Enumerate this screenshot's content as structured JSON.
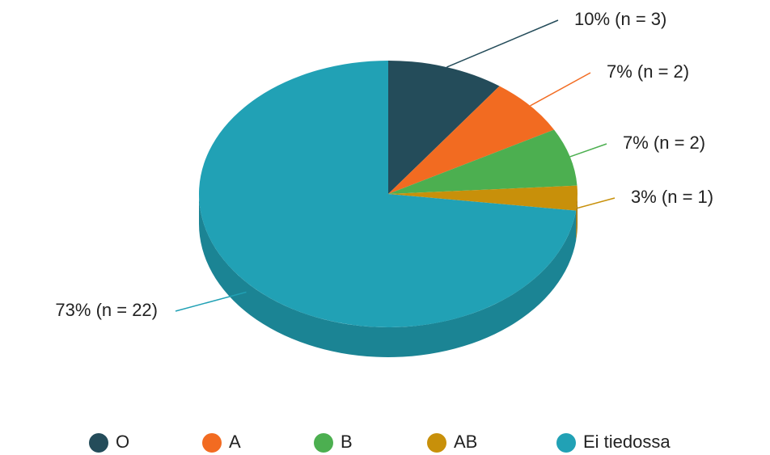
{
  "chart_data": {
    "type": "pie",
    "categories": [
      "O",
      "A",
      "B",
      "AB",
      "Ei tiedossa"
    ],
    "values": [
      10,
      7,
      7,
      3,
      73
    ],
    "value_labels": [
      "10% (n = 3)",
      "7% (n = 2)",
      "7% (n = 2)",
      "3% (n = 1)",
      "73% (n = 22)"
    ],
    "colors": [
      "#244c5a",
      "#f26b21",
      "#4caf50",
      "#c8900a",
      "#21a1b5"
    ],
    "legend": "bottom"
  }
}
